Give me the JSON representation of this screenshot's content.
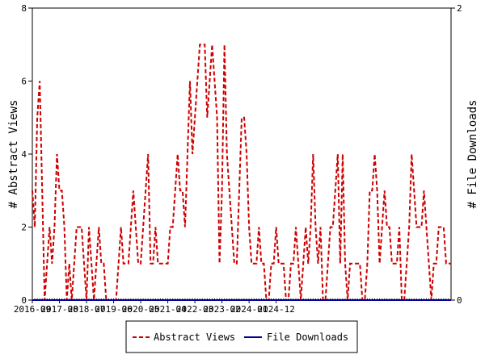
{
  "chart_data": {
    "type": "line",
    "ylabel_left": "# Abstract Views",
    "ylabel_right": "# File Downloads",
    "ylim_left": [
      0,
      8
    ],
    "ylim_right": [
      0,
      2
    ],
    "y_ticks_left": [
      "0",
      "2",
      "4",
      "6",
      "8"
    ],
    "y_ticks_right": [
      "0",
      "2"
    ],
    "x_tick_labels": [
      "2016-09",
      "2017-08",
      "2018-07",
      "2019-06",
      "2020-05",
      "2021-04",
      "2022-03",
      "2023-02",
      "2024-01",
      "2024-12"
    ],
    "grid": false,
    "legend_position": "bottom",
    "series": [
      {
        "name": "Abstract Views",
        "color": "#cc0000",
        "axis": "left",
        "style": "dashed",
        "values": [
          3,
          2,
          5,
          6,
          3,
          0,
          1,
          2,
          1,
          2,
          4,
          3,
          3,
          2,
          0,
          1,
          0,
          1,
          2,
          2,
          2,
          1,
          0,
          2,
          1,
          0,
          1,
          2,
          1,
          1,
          0,
          0,
          0,
          0,
          0,
          1,
          2,
          1,
          1,
          1,
          2,
          3,
          2,
          1,
          1,
          2,
          3,
          4,
          1,
          1,
          2,
          1,
          1,
          1,
          1,
          1,
          2,
          2,
          3,
          4,
          3,
          3,
          2,
          4,
          6,
          4,
          5,
          6,
          7,
          7,
          7,
          5,
          6,
          7,
          6,
          5,
          1,
          3,
          7,
          4,
          3,
          2,
          1,
          1,
          3,
          5,
          5,
          4,
          2,
          1,
          1,
          1,
          2,
          1,
          1,
          0,
          0,
          1,
          1,
          2,
          1,
          1,
          1,
          0,
          0,
          1,
          1,
          2,
          1,
          0,
          1,
          2,
          1,
          2,
          4,
          2,
          1,
          2,
          0,
          0,
          1,
          2,
          2,
          3,
          4,
          1,
          4,
          1,
          0,
          1,
          1,
          1,
          1,
          1,
          0,
          0,
          1,
          3,
          3,
          4,
          3,
          1,
          2,
          3,
          2,
          2,
          1,
          1,
          1,
          2,
          0,
          0,
          1,
          2,
          4,
          3,
          2,
          2,
          2,
          3,
          2,
          1,
          0,
          1,
          1,
          2,
          2,
          2,
          1,
          1,
          1
        ]
      },
      {
        "name": "File Downloads",
        "color": "#000099",
        "axis": "right",
        "style": "solid",
        "values": [
          0,
          0,
          0,
          0,
          0,
          0,
          0,
          0,
          0,
          0,
          0,
          0,
          0,
          0,
          0,
          0,
          0,
          0,
          0,
          0,
          0,
          0,
          0,
          0,
          0,
          0,
          0,
          0,
          0,
          0,
          0,
          0,
          0,
          0,
          0,
          0,
          0,
          0,
          0,
          0,
          0,
          0,
          0,
          0,
          0,
          0,
          0,
          0,
          0,
          0,
          0,
          0,
          0,
          0,
          0,
          0,
          0,
          0,
          0,
          0,
          0,
          0,
          0,
          0,
          0,
          0,
          0,
          0,
          0,
          0,
          0,
          0,
          0,
          0,
          0,
          0,
          0,
          0,
          0,
          0,
          0,
          0,
          0,
          0,
          0,
          0,
          0,
          0,
          0,
          0,
          0,
          0,
          0,
          0,
          0,
          0,
          0,
          0,
          0,
          0,
          0,
          0,
          0,
          0,
          0,
          0,
          0,
          0,
          0,
          0,
          0,
          0,
          0,
          0,
          0,
          0,
          0,
          0,
          0,
          0,
          0,
          0,
          0,
          0,
          0,
          0,
          0,
          0,
          0,
          0,
          0,
          0,
          0,
          0,
          0,
          0,
          0,
          0,
          0,
          0,
          0,
          0,
          0,
          0,
          0,
          0,
          0,
          0,
          0,
          0,
          0,
          0,
          0,
          0,
          0,
          0,
          0,
          0,
          0,
          0,
          0,
          0,
          0,
          0,
          0,
          0,
          0,
          0,
          0,
          0,
          0
        ]
      }
    ]
  }
}
